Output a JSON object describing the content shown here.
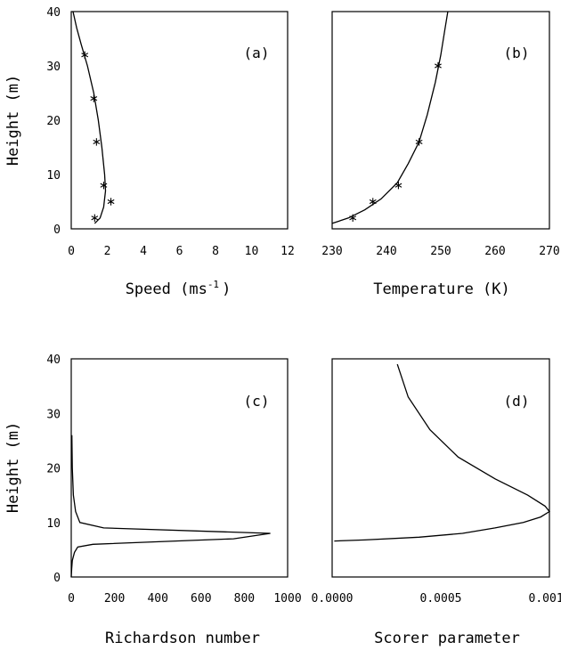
{
  "chart_data": [
    {
      "type": "line",
      "panel_label": "(a)",
      "xlabel": "Speed (ms",
      "xlabel_sup": "-1",
      "xlabel_close": ")",
      "ylabel": "Height (m)",
      "xlim": [
        0,
        12
      ],
      "ylim": [
        0,
        40
      ],
      "xticks": [
        "0",
        "2",
        "4",
        "6",
        "8",
        "10",
        "12"
      ],
      "yticks": [
        "0",
        "10",
        "20",
        "30",
        "40"
      ],
      "series": [
        {
          "kind": "line",
          "x": [
            1.3,
            1.6,
            1.8,
            1.9,
            1.85,
            1.7,
            1.5,
            1.25,
            0.9,
            0.55,
            0.3,
            0.1
          ],
          "y": [
            1,
            2,
            4,
            7,
            10,
            15,
            20,
            25,
            30,
            34,
            37,
            40
          ]
        },
        {
          "kind": "points",
          "x": [
            1.3,
            1.8,
            2.2,
            1.4,
            1.25,
            0.75
          ],
          "y": [
            2,
            8,
            5,
            16,
            24,
            32
          ]
        }
      ]
    },
    {
      "type": "line",
      "panel_label": "(b)",
      "xlabel": "Temperature (K)",
      "ylabel": "",
      "xlim": [
        230,
        270
      ],
      "ylim": [
        0,
        40
      ],
      "xticks": [
        "230",
        "240",
        "250",
        "260",
        "270"
      ],
      "yticks": [],
      "series": [
        {
          "kind": "line",
          "x": [
            230,
            233,
            236,
            239,
            242,
            244,
            246,
            247.5,
            249,
            250,
            250.8,
            251.3
          ],
          "y": [
            1,
            2,
            3.5,
            5.5,
            8.5,
            12,
            16,
            21,
            27,
            32,
            37,
            40
          ]
        },
        {
          "kind": "points",
          "x": [
            233.8,
            237.5,
            242.2,
            246,
            249.5
          ],
          "y": [
            2,
            5,
            8,
            16,
            30
          ]
        }
      ]
    },
    {
      "type": "line",
      "panel_label": "(c)",
      "xlabel": "Richardson number",
      "ylabel": "Height (m)",
      "xlim": [
        0,
        1000
      ],
      "ylim": [
        0,
        40
      ],
      "xticks": [
        "0",
        "200",
        "400",
        "600",
        "800",
        "1000"
      ],
      "yticks": [
        "0",
        "10",
        "20",
        "30",
        "40"
      ],
      "series": [
        {
          "kind": "line",
          "x": [
            0,
            2,
            5,
            15,
            30,
            100,
            750,
            920,
            150,
            40,
            20,
            10,
            5,
            3
          ],
          "y": [
            0,
            1.5,
            3,
            4.5,
            5.5,
            6,
            7,
            8,
            9,
            10,
            12,
            15,
            20,
            26
          ]
        }
      ]
    },
    {
      "type": "line",
      "panel_label": "(d)",
      "xlabel": "Scorer parameter",
      "ylabel": "",
      "xlim": [
        0,
        0.001
      ],
      "ylim": [
        0,
        40
      ],
      "xticks": [
        "0.0000",
        "0.0005",
        "0.0010"
      ],
      "yticks": [],
      "series": [
        {
          "kind": "line",
          "x": [
            1e-05,
            0.00015,
            0.0004,
            0.0006,
            0.00075,
            0.00088,
            0.00096,
            0.001,
            0.00098,
            0.0009,
            0.00075,
            0.00058,
            0.00045,
            0.00035,
            0.0003
          ],
          "y": [
            6.6,
            6.8,
            7.3,
            8,
            9,
            10,
            11,
            12,
            13,
            15,
            18,
            22,
            27,
            33,
            39
          ]
        }
      ]
    }
  ]
}
